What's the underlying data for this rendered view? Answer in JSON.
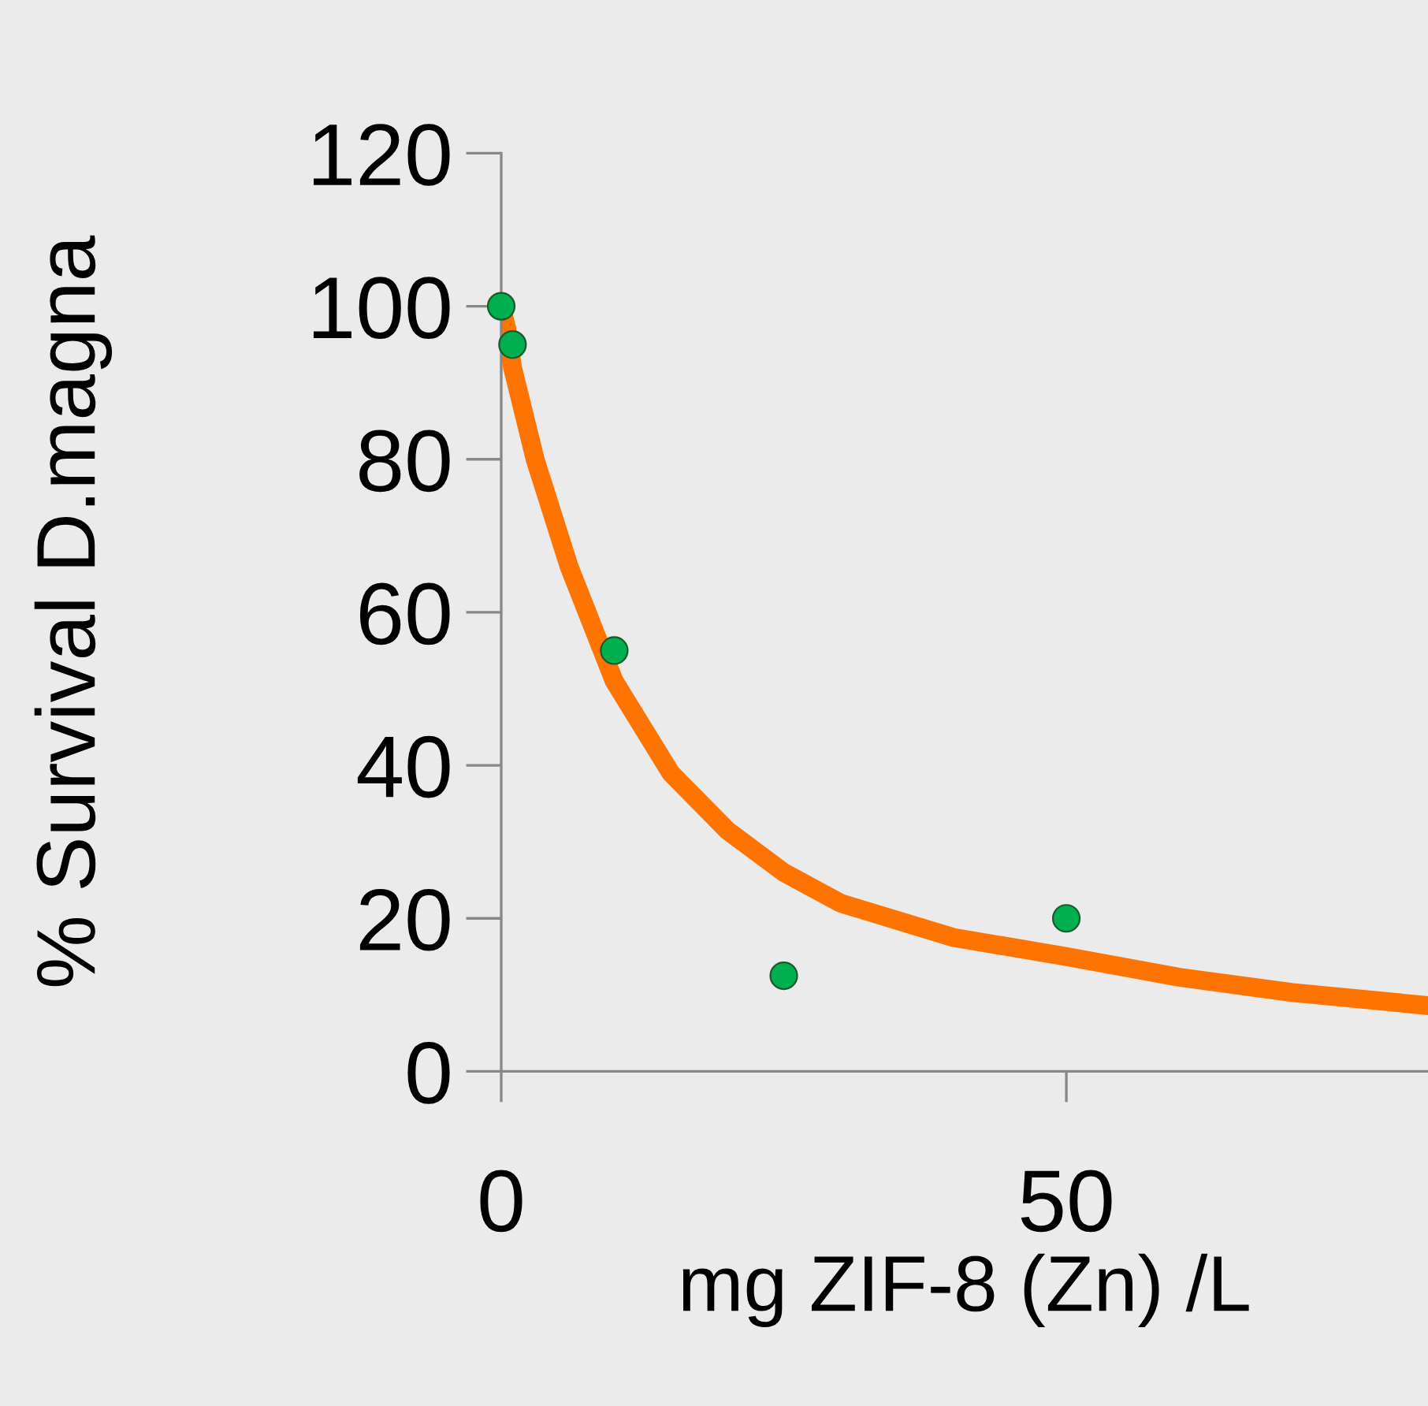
{
  "chart_data": {
    "type": "scatter",
    "xlabel": "mg ZIF-8 (Zn) /L",
    "ylabel": "% Survival D.magna",
    "xlim": [
      0,
      82
    ],
    "ylim": [
      0,
      120
    ],
    "xticks": [
      0,
      50
    ],
    "yticks": [
      0,
      20,
      40,
      60,
      80,
      100,
      120
    ],
    "grid": false,
    "legend": false,
    "series": [
      {
        "marker": "circle",
        "color": "#00b050",
        "x": [
          0,
          1,
          10,
          25,
          50
        ],
        "values": [
          100,
          95,
          55,
          12.5,
          20
        ]
      },
      {
        "type": "line",
        "color": "#ff7300",
        "line_style": "solid",
        "x": [
          0,
          0.5,
          1,
          3,
          6,
          10,
          15,
          20,
          25,
          30,
          40,
          50,
          60,
          70,
          82
        ],
        "values": [
          100,
          97,
          92,
          80,
          66,
          51,
          39,
          31.5,
          26,
          22,
          17.5,
          15,
          12.3,
          10.3,
          8.6
        ]
      }
    ]
  }
}
